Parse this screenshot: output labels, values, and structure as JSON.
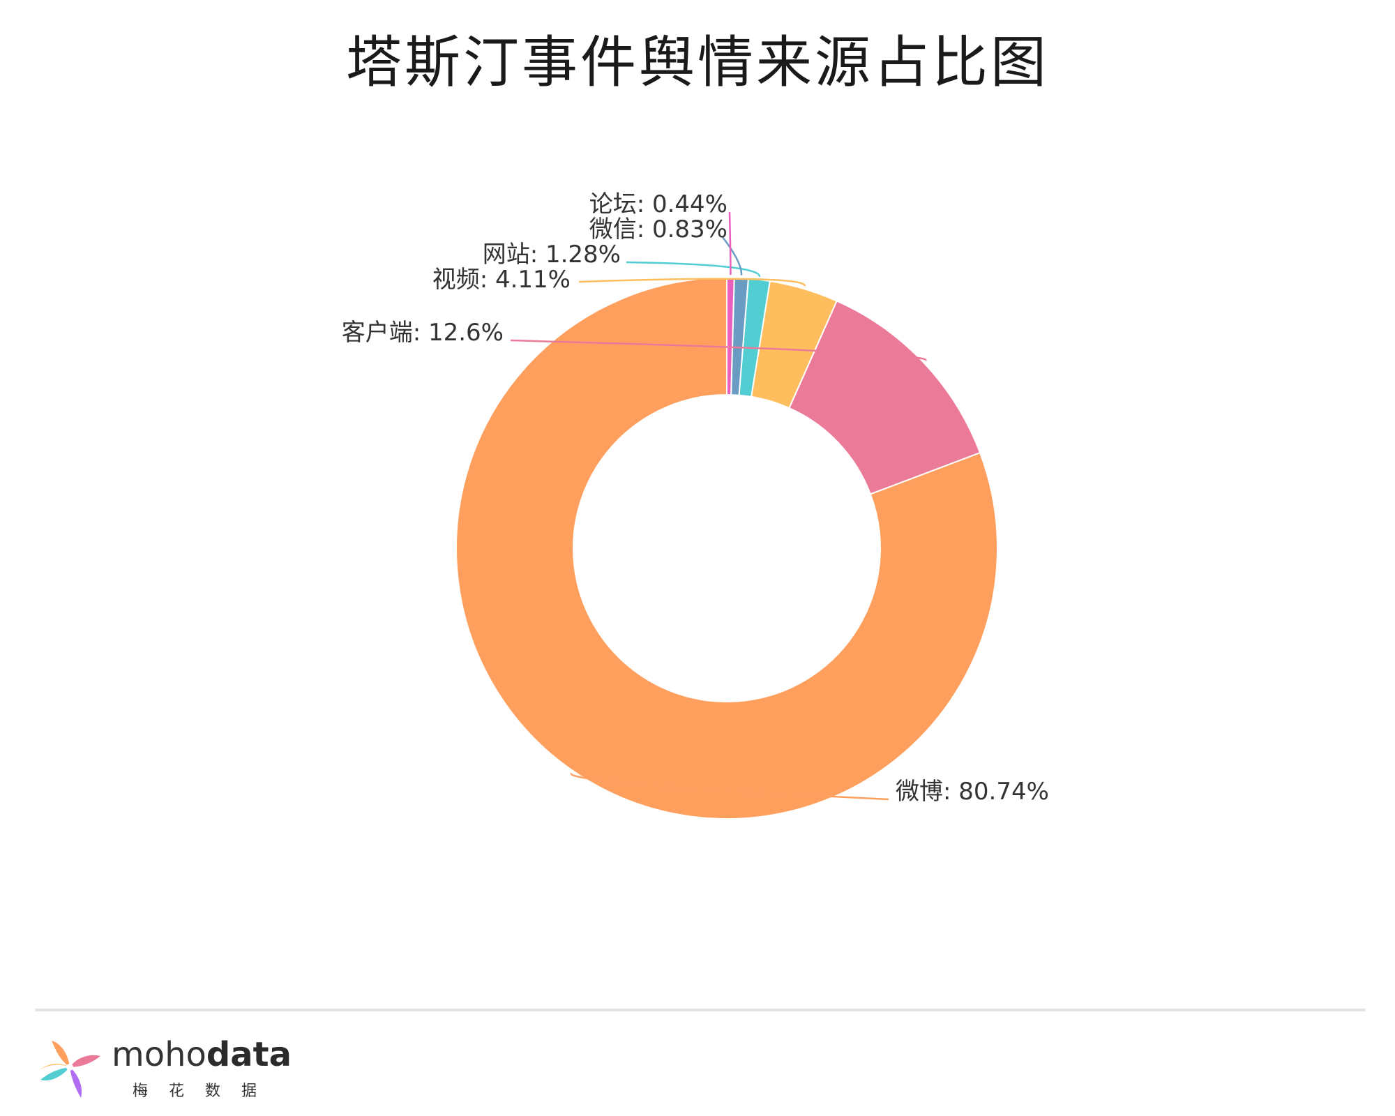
{
  "title": "塔斯汀事件舆情来源占比图",
  "chart_data": {
    "type": "pie",
    "style": "donut",
    "title": "塔斯汀事件舆情来源占比图",
    "slices": [
      {
        "name": "微博",
        "value": 80.74,
        "label": "微博: 80.74%",
        "color": "#FF9F5E"
      },
      {
        "name": "客户端",
        "value": 12.6,
        "label": "客户端: 12.6%",
        "color": "#EB7A99"
      },
      {
        "name": "视频",
        "value": 4.11,
        "label": "视频: 4.11%",
        "color": "#FFBE5E"
      },
      {
        "name": "网站",
        "value": 1.28,
        "label": "网站: 1.28%",
        "color": "#52CED2"
      },
      {
        "name": "微信",
        "value": 0.83,
        "label": "微信: 0.83%",
        "color": "#6A9BC3"
      },
      {
        "name": "论坛",
        "value": 0.44,
        "label": "论坛: 0.44%",
        "color": "#EA5FBE"
      }
    ]
  },
  "footer": {
    "brand_light": "moho",
    "brand_bold": "data",
    "brand_sub": "梅花数据",
    "logo_icon": "pinwheel-logo-icon"
  }
}
